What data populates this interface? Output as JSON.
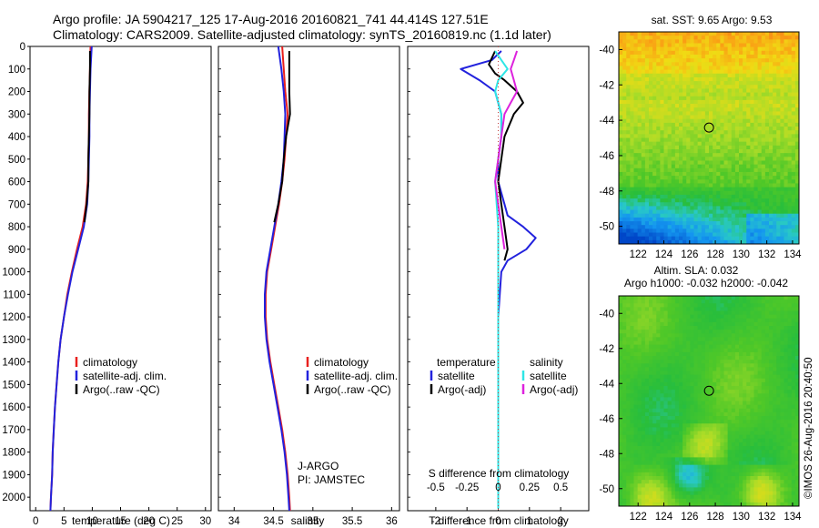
{
  "header": {
    "line1": "Argo profile: JA 5904217_125 17-Aug-2016 20160821_741 44.414S 127.51E",
    "line2": "Climatology: CARS2009. Satellite-adjusted climatology: synTS_20160819.nc (1.1d later)"
  },
  "colors": {
    "climatology": "#e8201e",
    "satellite": "#2222dd",
    "argo": "#000000",
    "satellite_salinity": "#2ee6e6",
    "argo_salinity": "#dd22dd"
  },
  "chart_data": [
    {
      "type": "line",
      "panel": "temperature",
      "xlabel": "temperature (deg C)",
      "ylabel": "",
      "xlim": [
        -1,
        31
      ],
      "ylim": [
        2060,
        0
      ],
      "xticks": [
        0,
        5,
        10,
        15,
        20,
        25,
        30
      ],
      "yticks": [
        0,
        100,
        200,
        300,
        400,
        500,
        600,
        700,
        800,
        900,
        1000,
        1100,
        1200,
        1300,
        1400,
        1500,
        1600,
        1700,
        1800,
        1900,
        2000
      ],
      "legend": [
        "climatology",
        "satellite-adj. clim.",
        "Argo(..raw -QC)"
      ],
      "series": [
        {
          "name": "climatology",
          "color": "#e8201e",
          "x": [
            9.7,
            9.6,
            9.5,
            9.4,
            9.4,
            9.3,
            9.2,
            8.9,
            8.3,
            7.3,
            6.4,
            5.6,
            5.0,
            4.4,
            4.0,
            3.7,
            3.4,
            3.2,
            3.0,
            2.9,
            2.7,
            2.6
          ],
          "y": [
            0,
            100,
            200,
            300,
            400,
            500,
            600,
            700,
            800,
            900,
            1000,
            1100,
            1200,
            1300,
            1400,
            1500,
            1600,
            1700,
            1800,
            1900,
            2000,
            2060
          ]
        },
        {
          "name": "satellite-adj. clim.",
          "color": "#2222dd",
          "x": [
            9.9,
            9.7,
            9.6,
            9.5,
            9.5,
            9.4,
            9.3,
            9.1,
            8.5,
            7.5,
            6.5,
            5.7,
            5.0,
            4.4,
            4.0,
            3.7,
            3.4,
            3.2,
            3.0,
            2.9,
            2.7,
            2.6
          ],
          "y": [
            0,
            100,
            200,
            300,
            400,
            500,
            600,
            700,
            800,
            900,
            1000,
            1100,
            1200,
            1300,
            1400,
            1500,
            1600,
            1700,
            1800,
            1900,
            2000,
            2060
          ]
        },
        {
          "name": "Argo(..raw -QC)",
          "color": "#000000",
          "x": [
            9.6,
            9.6,
            9.5,
            9.5,
            9.4,
            9.3,
            9.3,
            9.0,
            8.6
          ],
          "y": [
            20,
            100,
            200,
            300,
            400,
            500,
            600,
            700,
            780
          ]
        }
      ]
    },
    {
      "type": "line",
      "panel": "salinity",
      "xlabel": "salinity",
      "ylabel": "",
      "xlim": [
        33.8,
        36.1
      ],
      "ylim": [
        2060,
        0
      ],
      "xticks": [
        34,
        34.5,
        35,
        35.5,
        36
      ],
      "legend": [
        "climatology",
        "satellite-adj. clim.",
        "Argo(..raw -QC)"
      ],
      "annotations": [
        "J-ARGO",
        "PI: JAMSTEC"
      ],
      "series": [
        {
          "name": "climatology",
          "color": "#e8201e",
          "x": [
            34.61,
            34.63,
            34.65,
            34.68,
            34.66,
            34.64,
            34.61,
            34.57,
            34.52,
            34.47,
            34.42,
            34.4,
            34.4,
            34.42,
            34.46,
            34.51,
            34.56,
            34.61,
            34.65,
            34.68,
            34.7,
            34.71
          ],
          "y": [
            0,
            100,
            200,
            300,
            400,
            500,
            600,
            700,
            800,
            900,
            1000,
            1100,
            1200,
            1300,
            1400,
            1500,
            1600,
            1700,
            1800,
            1900,
            2000,
            2060
          ]
        },
        {
          "name": "satellite-adj. clim.",
          "color": "#2222dd",
          "x": [
            34.56,
            34.6,
            34.63,
            34.65,
            34.64,
            34.63,
            34.6,
            34.56,
            34.51,
            34.46,
            34.41,
            34.39,
            34.39,
            34.41,
            34.45,
            34.5,
            34.55,
            34.6,
            34.64,
            34.67,
            34.69,
            34.7
          ],
          "y": [
            0,
            100,
            200,
            300,
            400,
            500,
            600,
            700,
            800,
            900,
            1000,
            1100,
            1200,
            1300,
            1400,
            1500,
            1600,
            1700,
            1800,
            1900,
            2000,
            2060
          ]
        },
        {
          "name": "Argo(..raw -QC)",
          "color": "#000000",
          "x": [
            34.7,
            34.7,
            34.7,
            34.71,
            34.66,
            34.63,
            34.61,
            34.56,
            34.51
          ],
          "y": [
            20,
            100,
            200,
            300,
            400,
            500,
            600,
            700,
            780
          ]
        }
      ]
    },
    {
      "type": "line",
      "panel": "differences",
      "xlabel": "T difference from climatology",
      "xlabel_top": "S difference from climatology",
      "xlim": [
        -2.9,
        2.9
      ],
      "ylim": [
        2060,
        0
      ],
      "xticks": [
        -2,
        -1,
        0,
        1,
        2
      ],
      "xticklabels_top": [
        "-0.5",
        "-0.25",
        "0",
        "0.25",
        "0.5"
      ],
      "legend": [
        "temperature",
        "satellite",
        "Argo(-adj)",
        "salinity",
        "satellite",
        "Argo(-adj)"
      ],
      "series": [
        {
          "name": "satellite",
          "group": "temperature",
          "color": "#2222dd",
          "x": [
            0.1,
            -0.2,
            -1.2,
            -0.6,
            -0.1,
            0.1,
            0.1,
            0.0,
            0.0,
            0.1,
            0.2,
            0.3,
            0.8,
            1.2,
            0.9,
            0.3,
            0.1,
            0.0,
            0.0,
            0.0,
            0.0
          ],
          "y": [
            20,
            60,
            100,
            150,
            200,
            300,
            400,
            500,
            600,
            650,
            700,
            750,
            800,
            850,
            900,
            950,
            1000,
            1200,
            1500,
            1800,
            2050
          ]
        },
        {
          "name": "Argo(-adj)",
          "group": "temperature",
          "color": "#000000",
          "x": [
            -0.1,
            -0.3,
            -0.1,
            0.2,
            0.6,
            0.8,
            0.5,
            0.2,
            0.1,
            0.0,
            0.1,
            0.2,
            0.3,
            0.2
          ],
          "y": [
            20,
            80,
            120,
            150,
            200,
            250,
            300,
            400,
            500,
            600,
            700,
            800,
            900,
            950
          ]
        },
        {
          "name": "satellite",
          "group": "salinity",
          "color": "#2ee6e6",
          "x": [
            -0.1,
            0.1,
            0.3,
            0.0,
            -0.1,
            0.1,
            0.1,
            -0.1,
            0.0,
            0.0,
            0.0,
            0.0,
            0.0,
            0.0
          ],
          "y": [
            20,
            60,
            100,
            150,
            200,
            300,
            400,
            600,
            800,
            1000,
            1200,
            1500,
            1800,
            2050
          ]
        },
        {
          "name": "Argo(-adj)",
          "group": "salinity",
          "color": "#dd22dd",
          "x": [
            0.6,
            0.5,
            0.4,
            0.5,
            0.6,
            0.4,
            0.2,
            0.1,
            0.0,
            -0.1,
            0.0,
            0.1,
            0.2
          ],
          "y": [
            20,
            60,
            100,
            150,
            200,
            250,
            300,
            400,
            500,
            600,
            700,
            800,
            900
          ]
        }
      ]
    },
    {
      "type": "heatmap",
      "panel": "satellite SST map",
      "title": "sat. SST: 9.65 Argo: 9.53",
      "xlim": [
        120.5,
        134.5
      ],
      "ylim": [
        -51,
        -39
      ],
      "xticks": [
        122,
        124,
        126,
        128,
        130,
        132,
        134
      ],
      "yticks": [
        -40,
        -42,
        -44,
        -46,
        -48,
        -50
      ],
      "marker": {
        "lon": 127.51,
        "lat": -44.414
      }
    },
    {
      "type": "heatmap",
      "panel": "altimeter SLA map",
      "title_line1": "Altim. SLA: 0.032",
      "title_line2": "Argo h1000: -0.032 h2000: -0.042",
      "xlim": [
        120.5,
        134.5
      ],
      "ylim": [
        -51,
        -39
      ],
      "xticks": [
        122,
        124,
        126,
        128,
        130,
        132,
        134
      ],
      "yticks": [
        -40,
        -42,
        -44,
        -46,
        -48,
        -50
      ],
      "marker": {
        "lon": 127.51,
        "lat": -44.414
      }
    }
  ],
  "legend_labels": {
    "climatology": "climatology",
    "satellite_adj": "satellite-adj. clim.",
    "argo_raw": "Argo(..raw -QC)",
    "temperature": "temperature",
    "salinity": "salinity",
    "satellite": "satellite",
    "argo_adj": "Argo(-adj)"
  },
  "annotations": {
    "jargo": "J-ARGO",
    "pi": "PI: JAMSTEC",
    "credit": "©IMOS 26-Aug-2016 20:40:50"
  }
}
